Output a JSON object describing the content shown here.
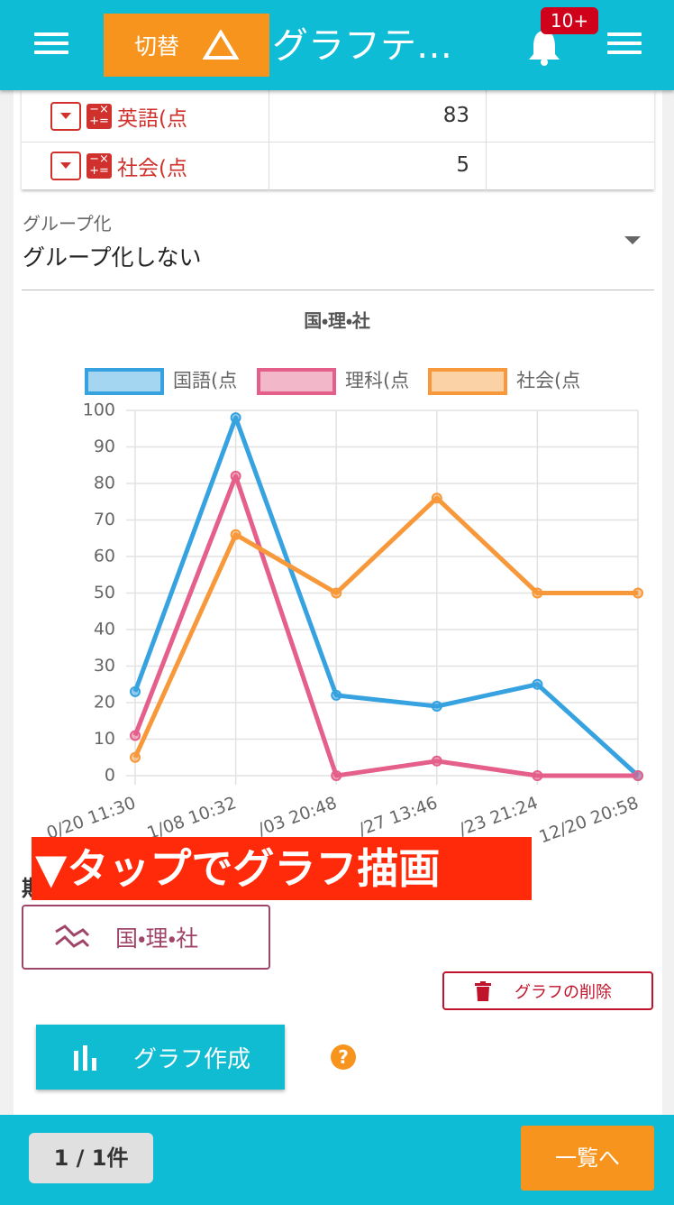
{
  "header": {
    "switch_button": "切替",
    "title": "グラフテ…",
    "badge": "10+"
  },
  "table": {
    "rows": [
      [
        "英語(点",
        83
      ],
      [
        "社会(点",
        5
      ]
    ]
  },
  "grouping": {
    "label": "グループ化",
    "value": "グループ化しない"
  },
  "chart_data": {
    "type": "line",
    "title": "国・理・社",
    "categories": [
      "0/20 11:30",
      "1/08 10:32",
      "/03 20:48",
      "/27 13:46",
      "/23 21:24",
      "12/20 20:58"
    ],
    "series": [
      {
        "name": "国語(点",
        "color": "#36a2e0",
        "values": [
          23,
          98,
          22,
          19,
          25,
          0
        ]
      },
      {
        "name": "理科(点",
        "color": "#e45f8a",
        "values": [
          11,
          82,
          0,
          4,
          0,
          0
        ]
      },
      {
        "name": "社会(点",
        "color": "#f7983a",
        "values": [
          5,
          66,
          50,
          76,
          50,
          50
        ]
      }
    ],
    "ylim": [
      0,
      100
    ],
    "yticks": [
      0,
      10,
      20,
      30,
      40,
      50,
      60,
      70,
      80,
      90,
      100
    ],
    "grid": true,
    "legend": "top"
  },
  "banner": "▼タップでグラフ描画",
  "hidden_label": "期",
  "saved_graph_button": "国・理・社",
  "delete_button": "グラフの削除",
  "create_button": "グラフ作成",
  "help_icon": "?",
  "footer": {
    "pagination": "1 / 1件",
    "list_button": "一覧へ"
  }
}
